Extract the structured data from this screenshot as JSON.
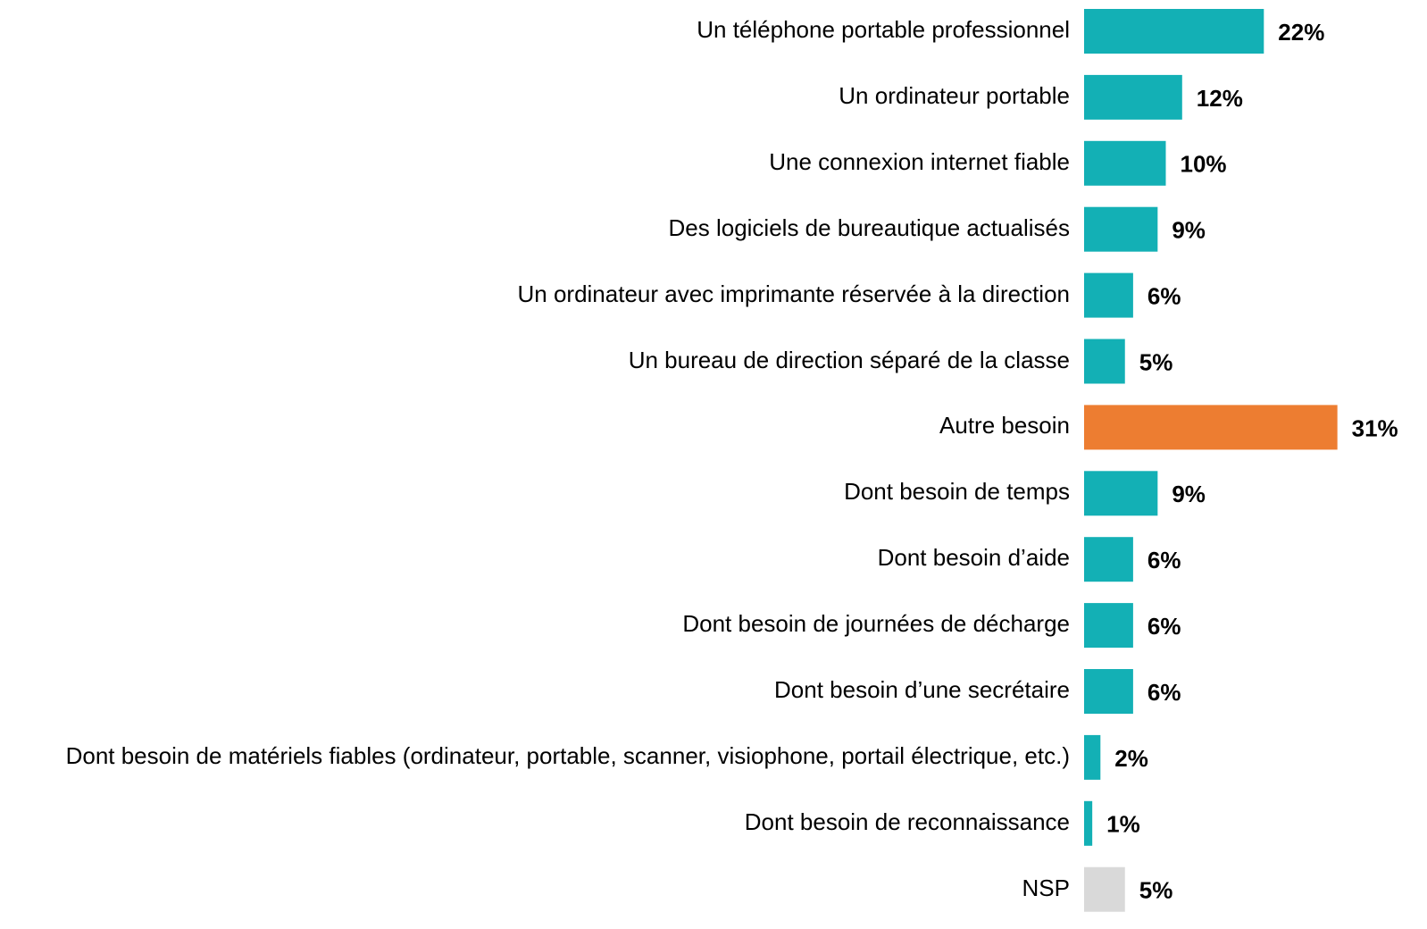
{
  "chart_data": {
    "type": "barh",
    "categories": [
      "Un téléphone portable professionnel",
      "Un ordinateur portable",
      "Une connexion internet fiable",
      "Des logiciels de bureautique actualisés",
      "Un ordinateur avec imprimante réservée à la direction",
      "Un bureau de direction séparé de la classe",
      "Autre besoin",
      "Dont besoin de temps",
      "Dont besoin d’aide",
      "Dont besoin de journées de décharge",
      "Dont besoin d’une secrétaire",
      "Dont besoin de matériels fiables (ordinateur, portable, scanner, visiophone, portail électrique, etc.)",
      "Dont besoin de reconnaissance",
      "NSP"
    ],
    "values": [
      22,
      12,
      10,
      9,
      6,
      5,
      31,
      9,
      6,
      6,
      6,
      2,
      1,
      5
    ],
    "value_labels": [
      "22%",
      "12%",
      "10%",
      "9%",
      "6%",
      "5%",
      "31%",
      "9%",
      "6%",
      "6%",
      "6%",
      "2%",
      "1%",
      "5%"
    ],
    "colors": [
      "#13b0b5",
      "#13b0b5",
      "#13b0b5",
      "#13b0b5",
      "#13b0b5",
      "#13b0b5",
      "#ed7d31",
      "#13b0b5",
      "#13b0b5",
      "#13b0b5",
      "#13b0b5",
      "#13b0b5",
      "#13b0b5",
      "#d9d9d9"
    ]
  }
}
